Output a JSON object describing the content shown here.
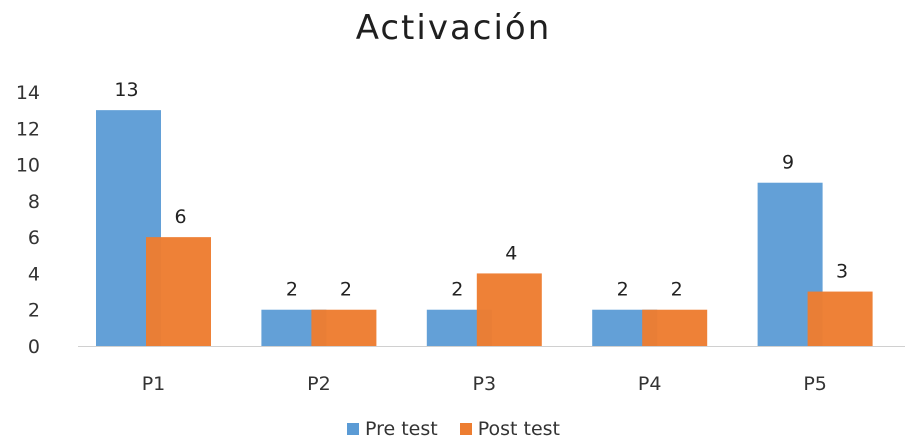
{
  "chart_data": {
    "type": "bar",
    "title": "Activación",
    "categories": [
      "P1",
      "P2",
      "P3",
      "P4",
      "P5"
    ],
    "series": [
      {
        "name": "Pre test",
        "values": [
          13,
          2,
          2,
          2,
          9
        ],
        "color": "#5b9bd5"
      },
      {
        "name": "Post test",
        "values": [
          6,
          2,
          4,
          2,
          3
        ],
        "color": "#ed7d31"
      }
    ],
    "ylim": [
      0,
      14
    ],
    "yticks": [
      0,
      2,
      4,
      6,
      8,
      10,
      12,
      14
    ],
    "grid": false,
    "legend_position": "bottom",
    "data_labels": true
  }
}
